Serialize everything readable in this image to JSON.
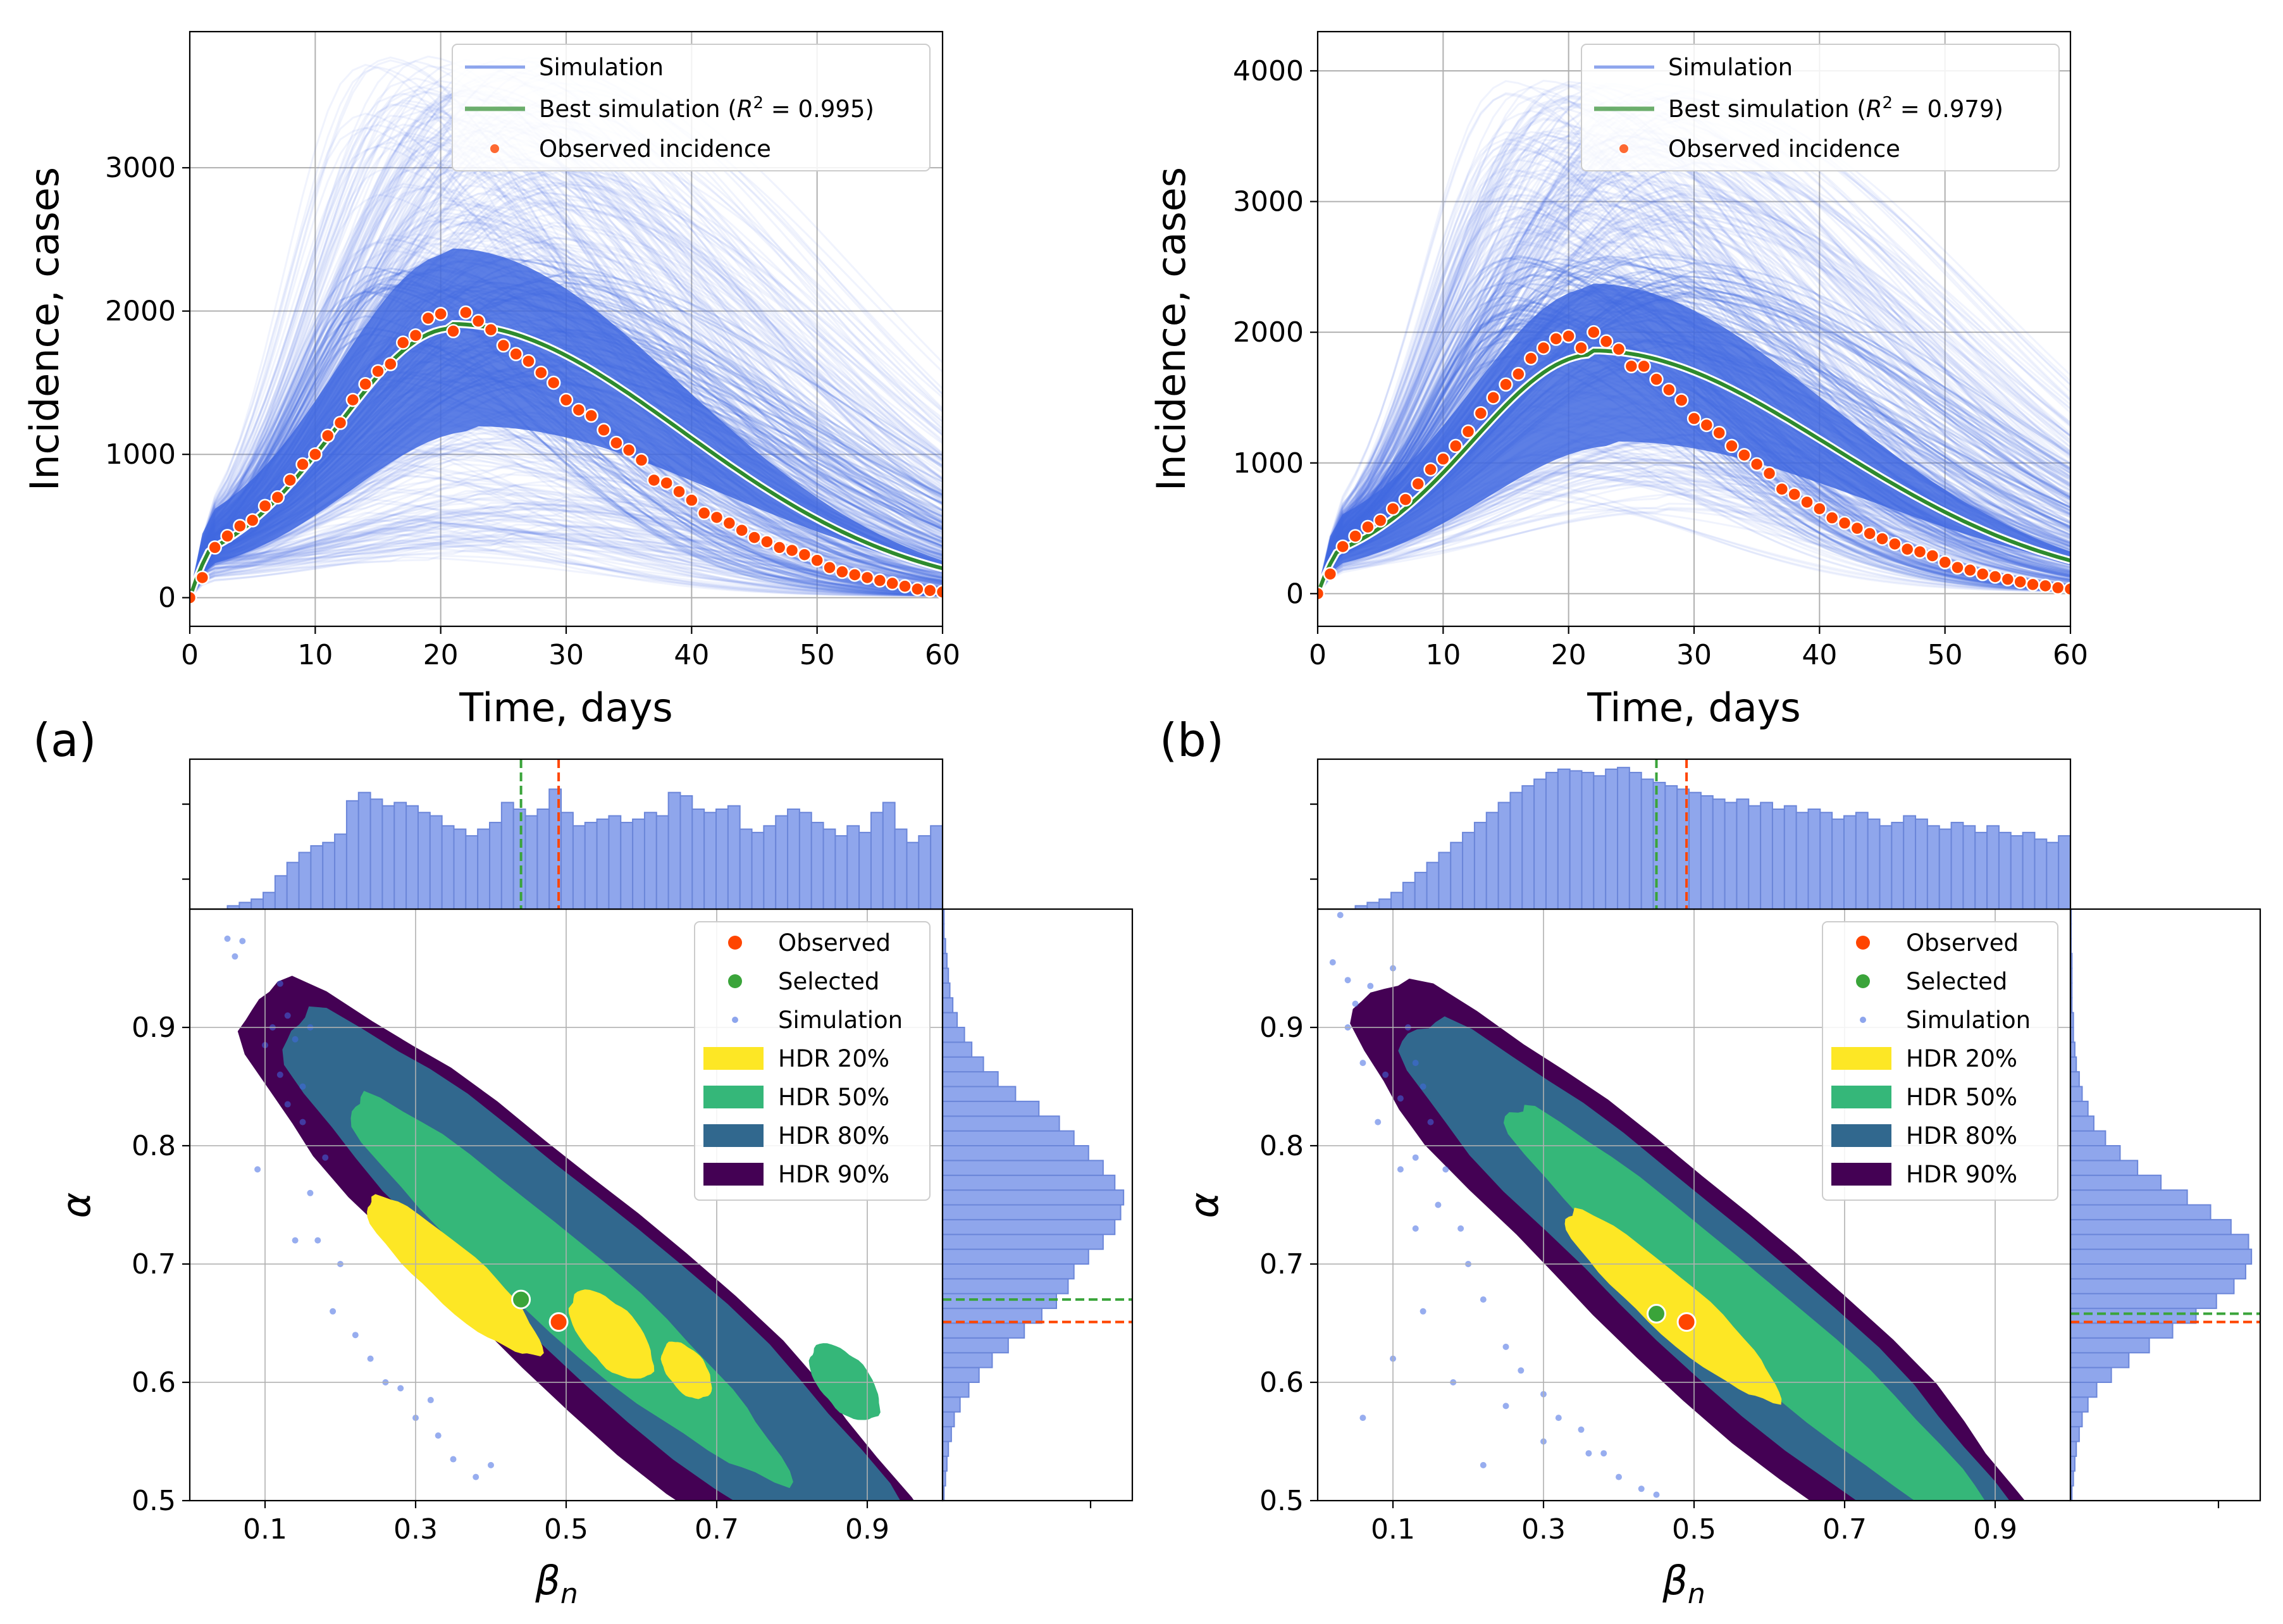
{
  "colors": {
    "simulation": "#4169e1",
    "best": "#2e8b2e",
    "observed": "#ff4500",
    "selected": "#3aa43a",
    "hist": "#8fa6ec",
    "hist_edge": "#6b86d9",
    "hdr20": "#fde725",
    "hdr50": "#35b779",
    "hdr80": "#31688e",
    "hdr90": "#440154"
  },
  "chart_data": [
    {
      "id": "a_top",
      "type": "line",
      "panel_label": "(a)",
      "xlabel": "Time, days",
      "ylabel": "Incidence, cases",
      "xlim": [
        0,
        60
      ],
      "ylim": [
        -200,
        3950
      ],
      "xticks": [
        0,
        10,
        20,
        30,
        40,
        50,
        60
      ],
      "yticks": [
        0,
        1000,
        2000,
        3000
      ],
      "legend": {
        "simulation": "Simulation",
        "best_prefix": "Best simulation (",
        "best_r2": "R",
        "best_sup": "2",
        "best_suffix": " = 0.995)",
        "observed": "Observed incidence"
      },
      "sim_peak_range": [
        250,
        3750
      ],
      "sim_peak_day_range": [
        13,
        30
      ],
      "best_peak": 1880,
      "best_peak_day": 21,
      "observed_days": [
        0,
        1,
        2,
        3,
        4,
        5,
        6,
        7,
        8,
        9,
        10,
        11,
        12,
        13,
        14,
        15,
        16,
        17,
        18,
        19,
        20,
        21,
        22,
        23,
        24,
        25,
        26,
        27,
        28,
        29,
        30,
        31,
        32,
        33,
        34,
        35,
        36,
        37,
        38,
        39,
        40,
        41,
        42,
        43,
        44,
        45,
        46,
        47,
        48,
        49,
        50,
        51,
        52,
        53,
        54,
        55,
        56,
        57,
        58,
        59,
        60
      ],
      "observed_values": [
        0,
        140,
        350,
        430,
        500,
        540,
        640,
        700,
        820,
        930,
        1000,
        1130,
        1220,
        1380,
        1490,
        1580,
        1630,
        1780,
        1830,
        1950,
        1980,
        1860,
        1990,
        1930,
        1870,
        1760,
        1700,
        1650,
        1570,
        1500,
        1380,
        1310,
        1270,
        1170,
        1080,
        1030,
        960,
        820,
        800,
        740,
        680,
        590,
        560,
        520,
        470,
        420,
        390,
        350,
        330,
        300,
        260,
        210,
        180,
        160,
        140,
        120,
        100,
        80,
        60,
        50,
        40
      ]
    },
    {
      "id": "b_top",
      "type": "line",
      "panel_label": "(b)",
      "xlabel": "Time, days",
      "ylabel": "Incidence, cases",
      "xlim": [
        0,
        60
      ],
      "ylim": [
        -250,
        4300
      ],
      "xticks": [
        0,
        10,
        20,
        30,
        40,
        50,
        60
      ],
      "yticks": [
        0,
        1000,
        2000,
        3000,
        4000
      ],
      "legend": {
        "simulation": "Simulation",
        "best_prefix": "Best simulation (",
        "best_r2": "R",
        "best_sup": "2",
        "best_suffix": " = 0.979)",
        "observed": "Observed incidence"
      },
      "sim_peak_range": [
        600,
        3900
      ],
      "sim_peak_day_range": [
        14,
        30
      ],
      "best_peak": 1830,
      "best_peak_day": 22,
      "observed_days": [
        0,
        1,
        2,
        3,
        4,
        5,
        6,
        7,
        8,
        9,
        10,
        11,
        12,
        13,
        14,
        15,
        16,
        17,
        18,
        19,
        20,
        21,
        22,
        23,
        24,
        25,
        26,
        27,
        28,
        29,
        30,
        31,
        32,
        33,
        34,
        35,
        36,
        37,
        38,
        39,
        40,
        41,
        42,
        43,
        44,
        45,
        46,
        47,
        48,
        49,
        50,
        51,
        52,
        53,
        54,
        55,
        56,
        57,
        58,
        59,
        60
      ],
      "observed_values": [
        0,
        150,
        360,
        440,
        510,
        560,
        650,
        720,
        840,
        950,
        1030,
        1130,
        1240,
        1380,
        1500,
        1600,
        1680,
        1800,
        1880,
        1950,
        1970,
        1880,
        2000,
        1930,
        1870,
        1740,
        1740,
        1640,
        1560,
        1480,
        1340,
        1290,
        1230,
        1130,
        1060,
        990,
        920,
        800,
        760,
        700,
        650,
        580,
        540,
        500,
        460,
        420,
        380,
        340,
        320,
        290,
        240,
        200,
        180,
        150,
        130,
        110,
        90,
        70,
        60,
        45,
        35
      ]
    },
    {
      "id": "a_bottom",
      "type": "scatter",
      "xlabel": "β",
      "xlabel_sub": "n",
      "ylabel": "α",
      "xlim": [
        0.0,
        1.0
      ],
      "ylim": [
        0.5,
        1.0
      ],
      "xticks": [
        0.1,
        0.3,
        0.5,
        0.7,
        0.9
      ],
      "yticks": [
        0.5,
        0.6,
        0.7,
        0.8,
        0.9
      ],
      "observed_point": [
        0.49,
        0.651
      ],
      "selected_point": [
        0.44,
        0.67
      ],
      "hdr_levels": [
        "HDR 90%",
        "HDR 80%",
        "HDR 50%",
        "HDR 20%"
      ],
      "legend": [
        "Observed",
        "Selected",
        "Simulation",
        "HDR 20%",
        "HDR 50%",
        "HDR 80%",
        "HDR 90%"
      ],
      "simulation_points": [
        [
          0.05,
          0.975
        ],
        [
          0.07,
          0.973
        ],
        [
          0.06,
          0.96
        ],
        [
          0.12,
          0.937
        ],
        [
          0.1,
          0.885
        ],
        [
          0.13,
          0.91
        ],
        [
          0.14,
          0.89
        ],
        [
          0.16,
          0.9
        ],
        [
          0.09,
          0.78
        ],
        [
          0.13,
          0.835
        ],
        [
          0.12,
          0.86
        ],
        [
          0.15,
          0.82
        ],
        [
          0.16,
          0.76
        ],
        [
          0.17,
          0.72
        ],
        [
          0.14,
          0.72
        ],
        [
          0.19,
          0.66
        ],
        [
          0.22,
          0.64
        ],
        [
          0.26,
          0.6
        ],
        [
          0.28,
          0.595
        ],
        [
          0.3,
          0.57
        ],
        [
          0.33,
          0.555
        ],
        [
          0.35,
          0.535
        ],
        [
          0.38,
          0.52
        ],
        [
          0.4,
          0.53
        ],
        [
          0.18,
          0.79
        ],
        [
          0.15,
          0.85
        ],
        [
          0.11,
          0.9
        ],
        [
          0.2,
          0.7
        ],
        [
          0.24,
          0.62
        ],
        [
          0.32,
          0.585
        ]
      ],
      "hist_x": [
        0.002,
        0.004,
        0.006,
        0.01,
        0.02,
        0.028,
        0.034,
        0.038,
        0.04,
        0.045,
        0.065,
        0.07,
        0.066,
        0.062,
        0.064,
        0.062,
        0.058,
        0.056,
        0.05,
        0.048,
        0.044,
        0.048,
        0.052,
        0.064,
        0.06,
        0.056,
        0.06,
        0.072,
        0.058,
        0.05,
        0.052,
        0.054,
        0.056,
        0.052,
        0.054,
        0.058,
        0.056,
        0.07,
        0.068,
        0.06,
        0.058,
        0.06,
        0.062,
        0.048,
        0.046,
        0.05,
        0.056,
        0.06,
        0.058,
        0.052,
        0.048,
        0.044,
        0.05,
        0.046,
        0.058,
        0.064,
        0.048,
        0.04,
        0.044,
        0.05
      ],
      "hist_x_obs": 0.49,
      "hist_x_sel": 0.44,
      "hist_y": [
        0.001,
        0.002,
        0.003,
        0.004,
        0.006,
        0.008,
        0.012,
        0.018,
        0.025,
        0.034,
        0.045,
        0.056,
        0.068,
        0.078,
        0.086,
        0.09,
        0.1,
        0.11,
        0.118,
        0.122,
        0.124,
        0.118,
        0.11,
        0.1,
        0.09,
        0.08,
        0.066,
        0.05,
        0.038,
        0.028,
        0.02,
        0.015,
        0.01,
        0.007,
        0.005,
        0.004,
        0.003,
        0.002,
        0.001,
        0.001
      ],
      "hist_y_obs": 0.651,
      "hist_y_sel": 0.67
    },
    {
      "id": "b_bottom",
      "type": "scatter",
      "xlabel": "β",
      "xlabel_sub": "n",
      "ylabel": "α",
      "xlim": [
        0.0,
        1.0
      ],
      "ylim": [
        0.5,
        1.0
      ],
      "xticks": [
        0.1,
        0.3,
        0.5,
        0.7,
        0.9
      ],
      "yticks": [
        0.5,
        0.6,
        0.7,
        0.8,
        0.9
      ],
      "observed_point": [
        0.49,
        0.651
      ],
      "selected_point": [
        0.45,
        0.658
      ],
      "hdr_levels": [
        "HDR 90%",
        "HDR 80%",
        "HDR 50%",
        "HDR 20%"
      ],
      "legend": [
        "Observed",
        "Selected",
        "Simulation",
        "HDR 20%",
        "HDR 50%",
        "HDR 80%",
        "HDR 90%"
      ],
      "simulation_points": [
        [
          0.03,
          0.995
        ],
        [
          0.02,
          0.955
        ],
        [
          0.04,
          0.94
        ],
        [
          0.07,
          0.935
        ],
        [
          0.1,
          0.95
        ],
        [
          0.05,
          0.92
        ],
        [
          0.12,
          0.9
        ],
        [
          0.13,
          0.87
        ],
        [
          0.14,
          0.85
        ],
        [
          0.06,
          0.87
        ],
        [
          0.09,
          0.86
        ],
        [
          0.11,
          0.84
        ],
        [
          0.04,
          0.9
        ],
        [
          0.15,
          0.82
        ],
        [
          0.13,
          0.79
        ],
        [
          0.17,
          0.78
        ],
        [
          0.16,
          0.75
        ],
        [
          0.19,
          0.73
        ],
        [
          0.13,
          0.73
        ],
        [
          0.2,
          0.7
        ],
        [
          0.22,
          0.67
        ],
        [
          0.14,
          0.66
        ],
        [
          0.25,
          0.63
        ],
        [
          0.27,
          0.61
        ],
        [
          0.3,
          0.59
        ],
        [
          0.32,
          0.57
        ],
        [
          0.35,
          0.56
        ],
        [
          0.38,
          0.54
        ],
        [
          0.4,
          0.52
        ],
        [
          0.43,
          0.51
        ],
        [
          0.06,
          0.57
        ],
        [
          0.1,
          0.62
        ],
        [
          0.18,
          0.6
        ],
        [
          0.25,
          0.58
        ],
        [
          0.3,
          0.55
        ],
        [
          0.36,
          0.54
        ],
        [
          0.08,
          0.82
        ],
        [
          0.11,
          0.78
        ],
        [
          0.45,
          0.505
        ],
        [
          0.22,
          0.53
        ]
      ],
      "hist_x": [
        0.002,
        0.004,
        0.006,
        0.01,
        0.016,
        0.022,
        0.028,
        0.034,
        0.04,
        0.046,
        0.052,
        0.058,
        0.064,
        0.07,
        0.074,
        0.078,
        0.082,
        0.084,
        0.083,
        0.082,
        0.08,
        0.084,
        0.085,
        0.082,
        0.078,
        0.076,
        0.074,
        0.072,
        0.07,
        0.068,
        0.066,
        0.064,
        0.066,
        0.062,
        0.064,
        0.06,
        0.062,
        0.058,
        0.06,
        0.058,
        0.054,
        0.056,
        0.058,
        0.054,
        0.05,
        0.052,
        0.056,
        0.054,
        0.05,
        0.048,
        0.052,
        0.05,
        0.046,
        0.05,
        0.046,
        0.044,
        0.046,
        0.042,
        0.04,
        0.044
      ],
      "hist_x_obs": 0.49,
      "hist_x_sel": 0.45,
      "hist_y": [
        0.001,
        0.002,
        0.003,
        0.004,
        0.006,
        0.008,
        0.012,
        0.018,
        0.028,
        0.04,
        0.054,
        0.07,
        0.086,
        0.1,
        0.112,
        0.12,
        0.124,
        0.122,
        0.11,
        0.096,
        0.08,
        0.062,
        0.046,
        0.034,
        0.024,
        0.016,
        0.012,
        0.008,
        0.006,
        0.004,
        0.003,
        0.002,
        0.002,
        0.001,
        0.001,
        0.001,
        0.001,
        0.0005,
        0.0005,
        0.0005
      ],
      "hist_y_obs": 0.651,
      "hist_y_sel": 0.658
    }
  ]
}
